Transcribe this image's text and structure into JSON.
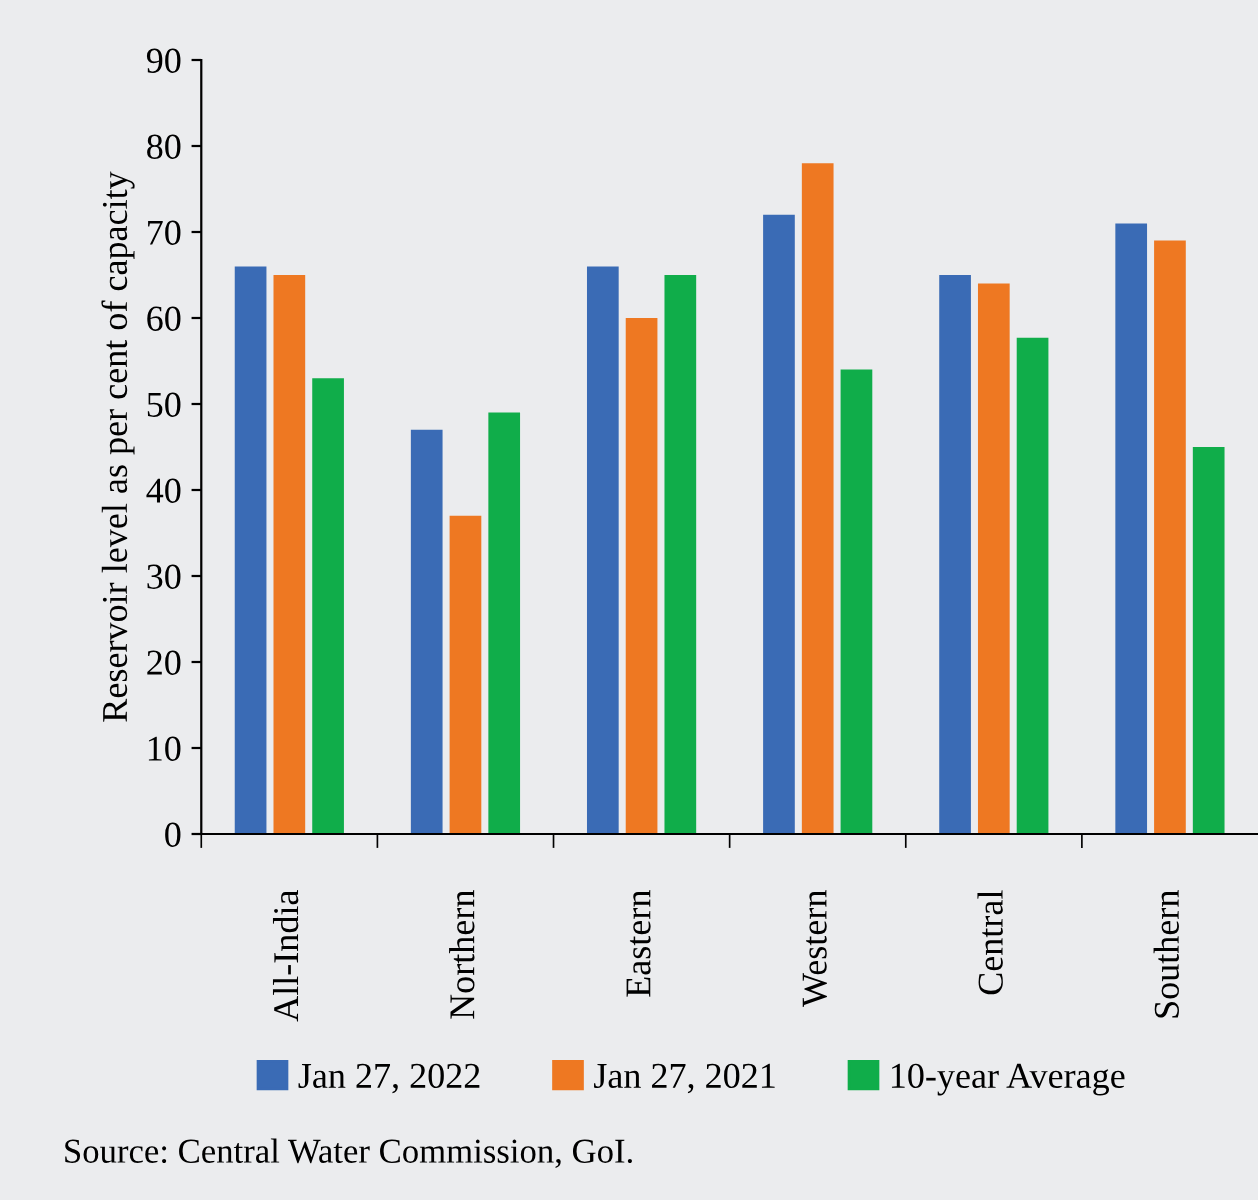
{
  "chart_data": {
    "type": "bar",
    "ylabel": "Reservoir level as per cent of capacity",
    "categories": [
      "All-India",
      "Northern",
      "Eastern",
      "Western",
      "Central",
      "Southern"
    ],
    "series": [
      {
        "name": "Jan 27, 2022",
        "color": "#3a6bb5",
        "values": [
          66,
          47,
          66,
          72,
          65,
          71
        ]
      },
      {
        "name": "Jan 27, 2021",
        "color": "#ee7822",
        "values": [
          65,
          37,
          60,
          78,
          64,
          69
        ]
      },
      {
        "name": "10-year Average",
        "color": "#10ad4a",
        "values": [
          53,
          49,
          65,
          54,
          57.7,
          45
        ]
      }
    ],
    "ylim": [
      0,
      90
    ],
    "yticks": [
      0,
      10,
      20,
      30,
      40,
      50,
      60,
      70,
      80,
      90
    ],
    "grid": false,
    "legend": "bottom",
    "annotations": [
      "Source: Central Water Commission, GoI."
    ]
  }
}
